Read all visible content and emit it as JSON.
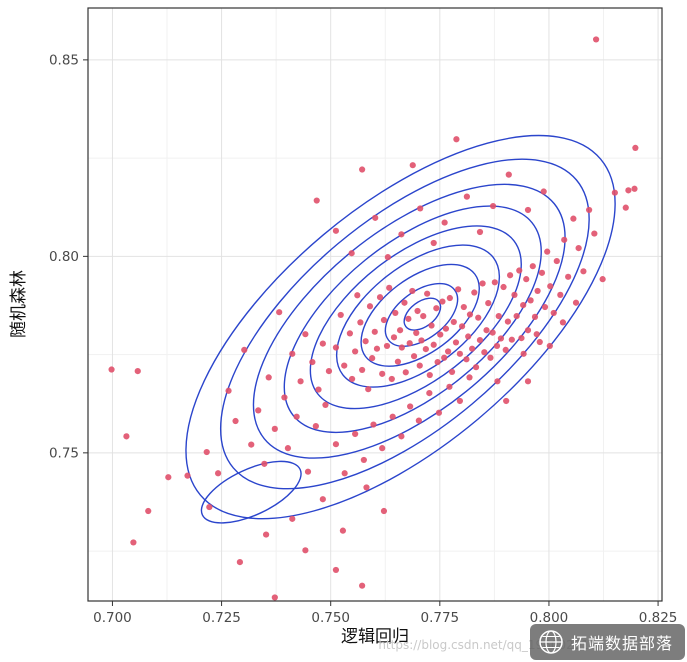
{
  "chart_data": {
    "type": "scatter",
    "title": "",
    "xlabel": "逻辑回归",
    "ylabel": "随机森林",
    "xlim": [
      0.6944,
      0.8259
    ],
    "ylim": [
      0.7123,
      0.8632
    ],
    "x_tick_values": [
      0.7,
      0.725,
      0.75,
      0.775,
      0.8,
      0.825
    ],
    "x_tick_labels": [
      "0.700",
      "0.725",
      "0.750",
      "0.775",
      "0.800",
      "0.825"
    ],
    "y_tick_values": [
      0.75,
      0.8,
      0.85
    ],
    "y_tick_labels": [
      "0.75",
      "0.80",
      "0.85"
    ],
    "x_minor_values": [
      0.7125,
      0.7375,
      0.7625,
      0.7875,
      0.8125
    ],
    "y_minor_values": [
      0.725,
      0.775,
      0.825
    ],
    "grid": true,
    "legend": "none",
    "point_color": "#e0506a",
    "contour_color": "#2b45cc",
    "grid_major_color": "#e2e2e2",
    "grid_minor_color": "#f1f1f1",
    "panel_border_color": "#333333",
    "tick_label_color": "#4a4a4a",
    "axis_title_color": "#111111",
    "contours": [
      {
        "cx": 0.771,
        "cy": 0.7853,
        "a": 0.005,
        "b": 0.003,
        "angle_deg": -37
      },
      {
        "cx": 0.7708,
        "cy": 0.7851,
        "a": 0.01,
        "b": 0.0057,
        "angle_deg": -37
      },
      {
        "cx": 0.7705,
        "cy": 0.785,
        "a": 0.0165,
        "b": 0.009,
        "angle_deg": -37
      },
      {
        "cx": 0.77,
        "cy": 0.7848,
        "a": 0.023,
        "b": 0.0122,
        "angle_deg": -38
      },
      {
        "cx": 0.7695,
        "cy": 0.7845,
        "a": 0.03,
        "b": 0.0152,
        "angle_deg": -38
      },
      {
        "cx": 0.7688,
        "cy": 0.784,
        "a": 0.037,
        "b": 0.0183,
        "angle_deg": -39
      },
      {
        "cx": 0.768,
        "cy": 0.7835,
        "a": 0.045,
        "b": 0.0218,
        "angle_deg": -39
      },
      {
        "cx": 0.767,
        "cy": 0.7828,
        "a": 0.054,
        "b": 0.0252,
        "angle_deg": -40
      },
      {
        "cx": 0.766,
        "cy": 0.782,
        "a": 0.063,
        "b": 0.029,
        "angle_deg": -40
      },
      {
        "cx": 0.7318,
        "cy": 0.74,
        "a": 0.013,
        "b": 0.0055,
        "angle_deg": -25
      }
    ],
    "points": [
      [
        0.7512,
        0.7768
      ],
      [
        0.7523,
        0.7851
      ],
      [
        0.7531,
        0.7722
      ],
      [
        0.7544,
        0.7804
      ],
      [
        0.7549,
        0.7688
      ],
      [
        0.7556,
        0.7758
      ],
      [
        0.7561,
        0.7901
      ],
      [
        0.7568,
        0.7832
      ],
      [
        0.7572,
        0.7711
      ],
      [
        0.758,
        0.7784
      ],
      [
        0.7586,
        0.7662
      ],
      [
        0.759,
        0.7873
      ],
      [
        0.7595,
        0.7741
      ],
      [
        0.7601,
        0.7808
      ],
      [
        0.7606,
        0.7765
      ],
      [
        0.7613,
        0.7896
      ],
      [
        0.7618,
        0.7701
      ],
      [
        0.7622,
        0.7838
      ],
      [
        0.7629,
        0.7772
      ],
      [
        0.7634,
        0.792
      ],
      [
        0.764,
        0.7688
      ],
      [
        0.7645,
        0.7794
      ],
      [
        0.7648,
        0.7856
      ],
      [
        0.7654,
        0.7732
      ],
      [
        0.7659,
        0.7812
      ],
      [
        0.7663,
        0.7768
      ],
      [
        0.7669,
        0.7882
      ],
      [
        0.7672,
        0.7705
      ],
      [
        0.7678,
        0.7841
      ],
      [
        0.7681,
        0.7779
      ],
      [
        0.7687,
        0.7912
      ],
      [
        0.7691,
        0.7746
      ],
      [
        0.7696,
        0.7805
      ],
      [
        0.7699,
        0.7861
      ],
      [
        0.7704,
        0.7722
      ],
      [
        0.7708,
        0.7786
      ],
      [
        0.7712,
        0.7848
      ],
      [
        0.7718,
        0.7764
      ],
      [
        0.7721,
        0.7905
      ],
      [
        0.7727,
        0.7698
      ],
      [
        0.7731,
        0.7824
      ],
      [
        0.7736,
        0.7775
      ],
      [
        0.7742,
        0.7868
      ],
      [
        0.7745,
        0.7731
      ],
      [
        0.7751,
        0.7801
      ],
      [
        0.7756,
        0.7885
      ],
      [
        0.776,
        0.7742
      ],
      [
        0.7764,
        0.7816
      ],
      [
        0.7769,
        0.7758
      ],
      [
        0.7773,
        0.7894
      ],
      [
        0.7778,
        0.7706
      ],
      [
        0.7782,
        0.7833
      ],
      [
        0.7787,
        0.7781
      ],
      [
        0.7792,
        0.7916
      ],
      [
        0.7796,
        0.7752
      ],
      [
        0.7801,
        0.7822
      ],
      [
        0.7805,
        0.7871
      ],
      [
        0.7811,
        0.7738
      ],
      [
        0.7815,
        0.7796
      ],
      [
        0.7819,
        0.7852
      ],
      [
        0.7824,
        0.7765
      ],
      [
        0.7829,
        0.7908
      ],
      [
        0.7833,
        0.7718
      ],
      [
        0.7838,
        0.7844
      ],
      [
        0.7842,
        0.7787
      ],
      [
        0.7848,
        0.7931
      ],
      [
        0.7852,
        0.7756
      ],
      [
        0.7857,
        0.7812
      ],
      [
        0.7861,
        0.7881
      ],
      [
        0.7866,
        0.7742
      ],
      [
        0.7871,
        0.7806
      ],
      [
        0.7876,
        0.7934
      ],
      [
        0.7881,
        0.7772
      ],
      [
        0.7885,
        0.7848
      ],
      [
        0.789,
        0.7791
      ],
      [
        0.7896,
        0.7922
      ],
      [
        0.7901,
        0.7762
      ],
      [
        0.7906,
        0.7834
      ],
      [
        0.7911,
        0.7952
      ],
      [
        0.7915,
        0.7788
      ],
      [
        0.7921,
        0.7902
      ],
      [
        0.7926,
        0.7848
      ],
      [
        0.7932,
        0.7964
      ],
      [
        0.7937,
        0.7792
      ],
      [
        0.7941,
        0.7876
      ],
      [
        0.7948,
        0.7942
      ],
      [
        0.7952,
        0.7812
      ],
      [
        0.7958,
        0.7888
      ],
      [
        0.7963,
        0.7975
      ],
      [
        0.7968,
        0.7846
      ],
      [
        0.7974,
        0.7912
      ],
      [
        0.7979,
        0.7782
      ],
      [
        0.7984,
        0.7958
      ],
      [
        0.7991,
        0.7871
      ],
      [
        0.7996,
        0.8012
      ],
      [
        0.8003,
        0.7924
      ],
      [
        0.8011,
        0.7856
      ],
      [
        0.8018,
        0.7988
      ],
      [
        0.8026,
        0.7902
      ],
      [
        0.8035,
        0.8042
      ],
      [
        0.8044,
        0.7948
      ],
      [
        0.8056,
        0.8096
      ],
      [
        0.8068,
        0.8021
      ],
      [
        0.8079,
        0.7962
      ],
      [
        0.8092,
        0.8118
      ],
      [
        0.8104,
        0.8058
      ],
      [
        0.8123,
        0.7942
      ],
      [
        0.8151,
        0.8162
      ],
      [
        0.8176,
        0.8124
      ],
      [
        0.8196,
        0.8172
      ],
      [
        0.7468,
        0.8142
      ],
      [
        0.7512,
        0.8065
      ],
      [
        0.7548,
        0.8008
      ],
      [
        0.7572,
        0.8221
      ],
      [
        0.7602,
        0.8098
      ],
      [
        0.7631,
        0.7998
      ],
      [
        0.7662,
        0.8056
      ],
      [
        0.7688,
        0.8232
      ],
      [
        0.7705,
        0.8122
      ],
      [
        0.7736,
        0.8034
      ],
      [
        0.7761,
        0.8086
      ],
      [
        0.7788,
        0.8298
      ],
      [
        0.7812,
        0.8152
      ],
      [
        0.7842,
        0.8062
      ],
      [
        0.7872,
        0.8128
      ],
      [
        0.7908,
        0.8208
      ],
      [
        0.7952,
        0.8118
      ],
      [
        0.7988,
        0.8165
      ],
      [
        0.8108,
        0.8552
      ],
      [
        0.8198,
        0.8276
      ],
      [
        0.8182,
        0.8168
      ],
      [
        0.7172,
        0.7442
      ],
      [
        0.7216,
        0.7502
      ],
      [
        0.7242,
        0.7448
      ],
      [
        0.7266,
        0.7658
      ],
      [
        0.7282,
        0.7581
      ],
      [
        0.7302,
        0.7762
      ],
      [
        0.7318,
        0.7521
      ],
      [
        0.7334,
        0.7608
      ],
      [
        0.7348,
        0.7472
      ],
      [
        0.7358,
        0.7692
      ],
      [
        0.7372,
        0.7561
      ],
      [
        0.7382,
        0.7858
      ],
      [
        0.7394,
        0.7641
      ],
      [
        0.7402,
        0.7512
      ],
      [
        0.7412,
        0.7752
      ],
      [
        0.7422,
        0.7592
      ],
      [
        0.7431,
        0.7682
      ],
      [
        0.7442,
        0.7802
      ],
      [
        0.7448,
        0.7452
      ],
      [
        0.7458,
        0.7731
      ],
      [
        0.7466,
        0.7568
      ],
      [
        0.7472,
        0.7661
      ],
      [
        0.7482,
        0.7778
      ],
      [
        0.7488,
        0.7622
      ],
      [
        0.7496,
        0.7708
      ],
      [
        0.7512,
        0.7522
      ],
      [
        0.7532,
        0.7448
      ],
      [
        0.7556,
        0.7548
      ],
      [
        0.7576,
        0.7482
      ],
      [
        0.7598,
        0.7572
      ],
      [
        0.7618,
        0.7512
      ],
      [
        0.7642,
        0.7592
      ],
      [
        0.7662,
        0.7542
      ],
      [
        0.7682,
        0.7618
      ],
      [
        0.7702,
        0.7582
      ],
      [
        0.7726,
        0.7652
      ],
      [
        0.7748,
        0.7602
      ],
      [
        0.7772,
        0.7668
      ],
      [
        0.7796,
        0.7632
      ],
      [
        0.7818,
        0.7692
      ],
      [
        0.7482,
        0.7382
      ],
      [
        0.7528,
        0.7302
      ],
      [
        0.7582,
        0.7412
      ],
      [
        0.7622,
        0.7352
      ],
      [
        0.7442,
        0.7252
      ],
      [
        0.7512,
        0.7202
      ],
      [
        0.7572,
        0.7162
      ],
      [
        0.6998,
        0.7712
      ],
      [
        0.7058,
        0.7708
      ],
      [
        0.7032,
        0.7542
      ],
      [
        0.7048,
        0.7272
      ],
      [
        0.7082,
        0.7352
      ],
      [
        0.7128,
        0.7438
      ],
      [
        0.7292,
        0.7222
      ],
      [
        0.7352,
        0.7292
      ],
      [
        0.7372,
        0.7132
      ],
      [
        0.7412,
        0.7332
      ],
      [
        0.7222,
        0.7362
      ],
      [
        0.7942,
        0.7752
      ],
      [
        0.7972,
        0.7802
      ],
      [
        0.8002,
        0.7772
      ],
      [
        0.8032,
        0.7832
      ],
      [
        0.7952,
        0.7682
      ],
      [
        0.7902,
        0.7632
      ],
      [
        0.7882,
        0.7682
      ],
      [
        0.8062,
        0.7882
      ]
    ]
  },
  "watermark": {
    "url_text": "https://blog.csdn.net/qq_19600291",
    "badge_text": "拓端数据部落"
  }
}
